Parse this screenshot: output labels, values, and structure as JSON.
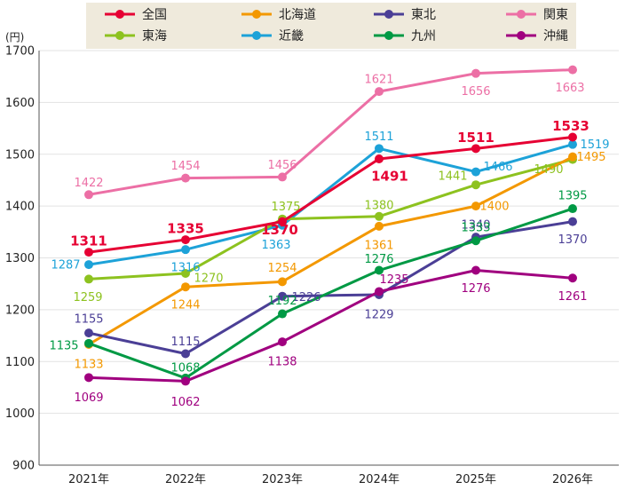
{
  "chart_data": {
    "type": "line",
    "ylabel": "(円)",
    "ylim": [
      900,
      1700
    ],
    "yticks": [
      900,
      1000,
      1100,
      1200,
      1300,
      1400,
      1500,
      1600,
      1700
    ],
    "categories": [
      "2021年",
      "2022年",
      "2023年",
      "2024年",
      "2025年",
      "2026年"
    ],
    "grid": "horizontal",
    "legend_placement": "top",
    "series": [
      {
        "name": "全国",
        "color": "#e60033",
        "values": [
          1311,
          1335,
          1370,
          1491,
          1511,
          1533
        ],
        "bold": true
      },
      {
        "name": "北海道",
        "color": "#f39800",
        "values": [
          1133,
          1244,
          1254,
          1361,
          1400,
          1495
        ]
      },
      {
        "name": "東北",
        "color": "#4b3f96",
        "values": [
          1155,
          1115,
          1226,
          1229,
          1340,
          1370
        ]
      },
      {
        "name": "関東",
        "color": "#ec6fa5",
        "values": [
          1422,
          1454,
          1456,
          1621,
          1656,
          1663
        ]
      },
      {
        "name": "東海",
        "color": "#8dc21f",
        "values": [
          1259,
          1270,
          1375,
          1380,
          1441,
          1490
        ]
      },
      {
        "name": "近畿",
        "color": "#1da2d8",
        "values": [
          1287,
          1316,
          1363,
          1511,
          1466,
          1519
        ]
      },
      {
        "name": "九州",
        "color": "#009944",
        "values": [
          1135,
          1068,
          1192,
          1276,
          1333,
          1395
        ]
      },
      {
        "name": "沖縄",
        "color": "#a0007f",
        "values": [
          1069,
          1062,
          1138,
          1235,
          1276,
          1261
        ]
      }
    ]
  }
}
